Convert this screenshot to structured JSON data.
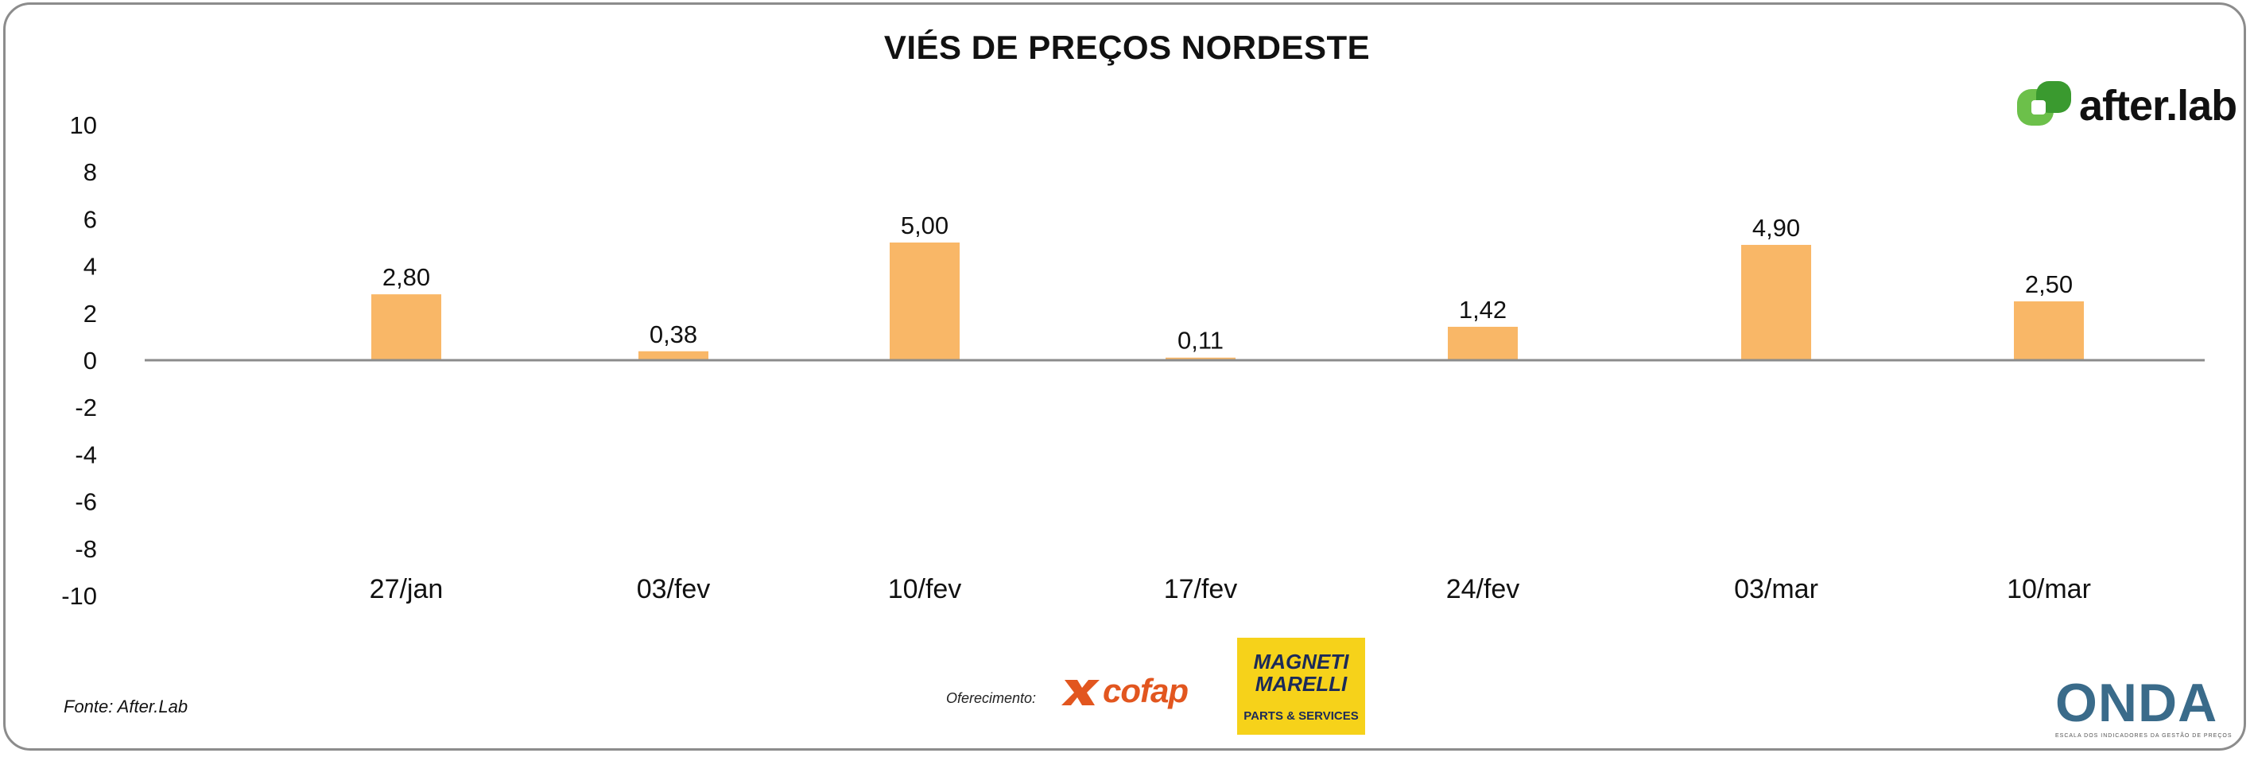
{
  "chart_data": {
    "type": "bar",
    "title": "VIÉS DE PREÇOS NORDESTE",
    "categories": [
      "27/jan",
      "03/fev",
      "10/fev",
      "17/fev",
      "24/fev",
      "03/mar",
      "10/mar"
    ],
    "values": [
      2.8,
      0.38,
      5.0,
      0.11,
      1.42,
      4.9,
      2.5
    ],
    "data_labels": [
      "2,80",
      "0,38",
      "5,00",
      "0,11",
      "1,42",
      "4,90",
      "2,50"
    ],
    "y_ticks": [
      "10",
      "8",
      "6",
      "4",
      "2",
      "0",
      "-2",
      "-4",
      "-6",
      "-8",
      "-10"
    ],
    "ylim": [
      -10,
      10
    ],
    "bar_color": "#f9b767",
    "axis_color": "#8c8c8c",
    "grid": false,
    "legend": "none"
  },
  "branding": {
    "after_lab": "after.lab",
    "source": "Fonte: After.Lab",
    "offered_by": "Oferecimento:",
    "cofap": "cofap",
    "magneti_top": "MAGNETI MARELLI",
    "magneti_bottom": "PARTS & SERVICES",
    "onda": "ONDA",
    "onda_sub": "ESCALA DOS INDICADORES DA GESTÃO DE PREÇOS"
  }
}
